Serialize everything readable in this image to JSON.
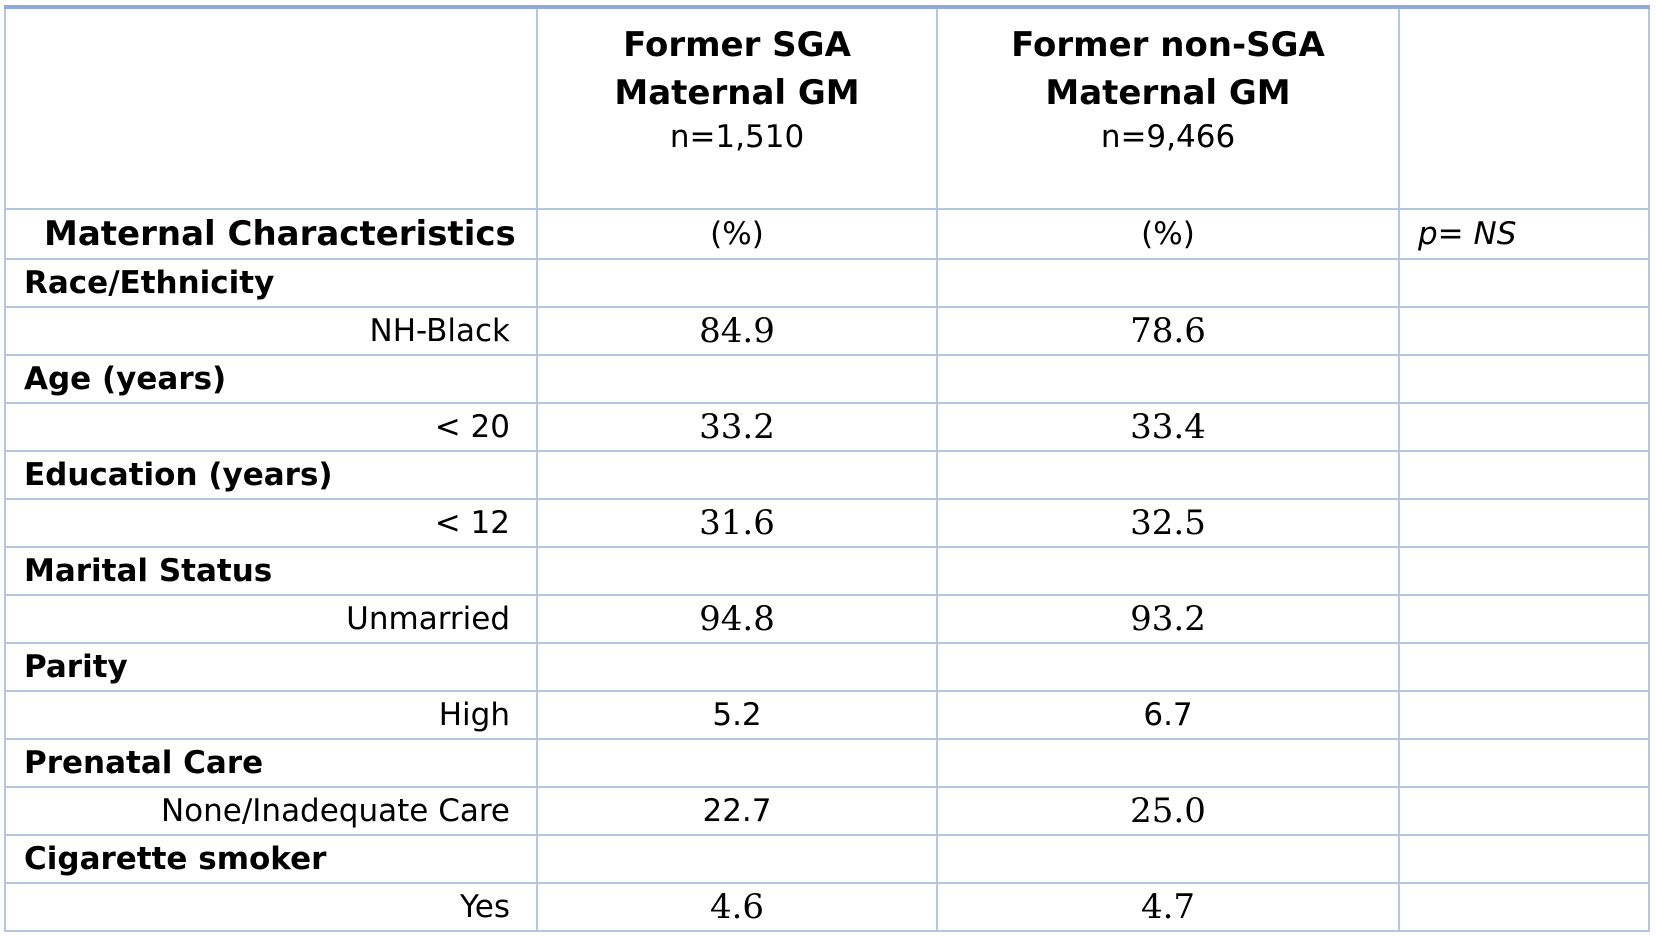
{
  "columns": {
    "sga": {
      "line1": "Former SGA",
      "line2": "Maternal GM",
      "n": "n=1,510"
    },
    "nonsga": {
      "line1": "Former non-SGA",
      "line2": "Maternal GM",
      "n": "n=9,466"
    }
  },
  "subheader": {
    "title": "Maternal Characteristics",
    "sga_unit": "(%)",
    "nonsga_unit": "(%)",
    "pvalue": "p= NS"
  },
  "rows": [
    {
      "category": "Race/Ethnicity",
      "label": "NH-Black",
      "sga": "84.9",
      "nonsga": "78.6"
    },
    {
      "category": "Age (years)",
      "label": "< 20",
      "sga": "33.2",
      "nonsga": "33.4"
    },
    {
      "category": "Education (years)",
      "label": "< 12",
      "sga": "31.6",
      "nonsga": "32.5"
    },
    {
      "category": "Marital Status",
      "label": "Unmarried",
      "sga": "94.8",
      "nonsga": "93.2"
    },
    {
      "category": "Parity",
      "label": "High",
      "sga": "5.2",
      "nonsga": "6.7"
    },
    {
      "category": "Prenatal Care",
      "label": "None/Inadequate Care",
      "sga": "22.7",
      "nonsga": "25.0"
    },
    {
      "category": "Cigarette smoker",
      "label": "Yes",
      "sga": "4.6",
      "nonsga": "4.7"
    }
  ]
}
